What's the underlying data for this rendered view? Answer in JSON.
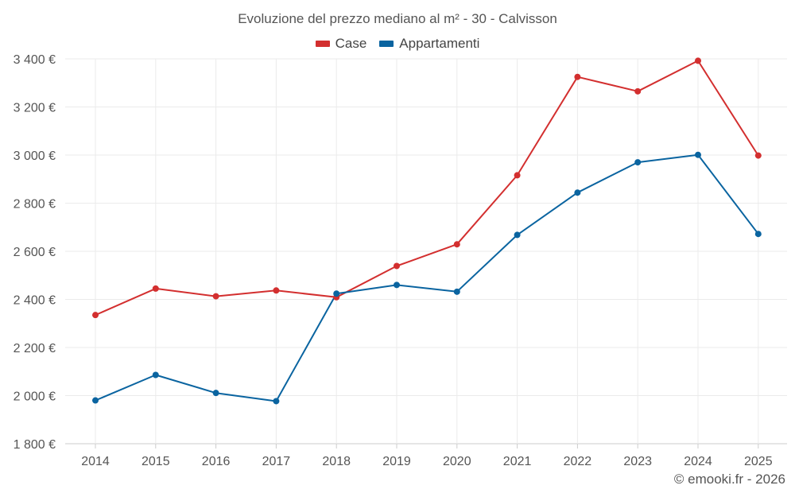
{
  "chart_data": {
    "type": "line",
    "title": "Evoluzione del prezzo mediano al m² - 30 - Calvisson",
    "xlabel": "",
    "ylabel": "",
    "categories": [
      "2014",
      "2015",
      "2016",
      "2017",
      "2018",
      "2019",
      "2020",
      "2021",
      "2022",
      "2023",
      "2024",
      "2025"
    ],
    "ylim": [
      1800,
      3400
    ],
    "yticks": [
      1800,
      2000,
      2200,
      2400,
      2600,
      2800,
      3000,
      3200,
      3400
    ],
    "ytick_labels": [
      "1 800 €",
      "2 000 €",
      "2 200 €",
      "2 400 €",
      "2 600 €",
      "2 800 €",
      "3 000 €",
      "3 200 €",
      "3 400 €"
    ],
    "grid": true,
    "legend_position": "top-center",
    "series": [
      {
        "name": "Case",
        "color": "#d32f2f",
        "values": [
          2335,
          2445,
          2413,
          2437,
          2409,
          2539,
          2629,
          2916,
          3325,
          3265,
          3392,
          2998
        ]
      },
      {
        "name": "Appartamenti",
        "color": "#0a64a0",
        "values": [
          1980,
          2086,
          2011,
          1977,
          2424,
          2460,
          2432,
          2668,
          2844,
          2970,
          3001,
          2672
        ]
      }
    ]
  },
  "footer": {
    "credit": "© emooki.fr - 2026"
  }
}
